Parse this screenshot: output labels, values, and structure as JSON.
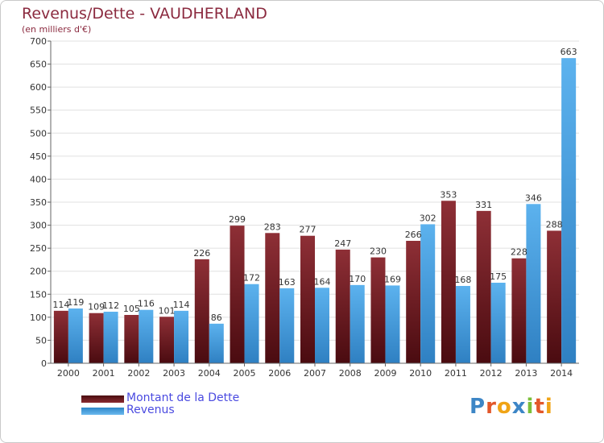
{
  "chart_data": {
    "type": "bar",
    "title": "Revenus/Dette - VAUDHERLAND",
    "subtitle": "(en milliers d'€)",
    "xlabel": "",
    "ylabel": "",
    "categories": [
      "2000",
      "2001",
      "2002",
      "2003",
      "2004",
      "2005",
      "2006",
      "2007",
      "2008",
      "2009",
      "2010",
      "2011",
      "2012",
      "2013",
      "2014"
    ],
    "series": [
      {
        "name": "Montant de la Dette",
        "color": "#7a1e24",
        "values": [
          114,
          109,
          105,
          101,
          226,
          299,
          283,
          277,
          247,
          230,
          266,
          353,
          331,
          228,
          288
        ]
      },
      {
        "name": "Revenus",
        "color": "#4ea6e6",
        "values": [
          119,
          112,
          116,
          114,
          86,
          172,
          163,
          164,
          170,
          169,
          302,
          168,
          175,
          346,
          663
        ]
      }
    ],
    "ylim": [
      0,
      700
    ],
    "yticks": [
      0,
      50,
      100,
      150,
      200,
      250,
      300,
      350,
      400,
      450,
      500,
      550,
      600,
      650,
      700
    ],
    "grid": true,
    "legend": "bottom-left"
  },
  "brand": {
    "name": "Proxiti",
    "letters": [
      "P",
      "r",
      "o",
      "x",
      "i",
      "t",
      "i"
    ],
    "colors": [
      "#3d86c6",
      "#e2572a",
      "#f0a416",
      "#3d86c6",
      "#7bbf3a",
      "#e2572a",
      "#f0a416"
    ]
  }
}
